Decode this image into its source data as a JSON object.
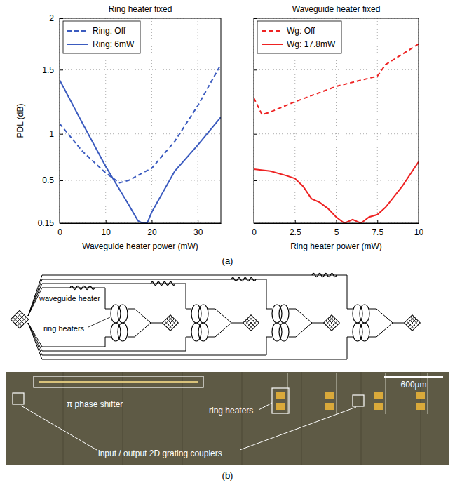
{
  "chart_data": [
    {
      "type": "line",
      "title": "Ring heater fixed",
      "xlabel": "Waveguide heater power (mW)",
      "ylabel": "PDL (dB)",
      "xlim": [
        0,
        35
      ],
      "xticks": [
        0,
        10,
        20,
        30
      ],
      "ylim": [
        0.15,
        2
      ],
      "yticks": [
        0.15,
        0.5,
        1,
        1.5,
        2
      ],
      "grid": true,
      "legend": "upper-left",
      "series": [
        {
          "name": "Ring: Off",
          "color": "#3b5bbf",
          "line_style": "dashed",
          "x": [
            0,
            5,
            10,
            13,
            15,
            18,
            20,
            25,
            30,
            35
          ],
          "values": [
            1.08,
            0.81,
            0.58,
            0.48,
            0.5,
            0.58,
            0.63,
            0.92,
            1.22,
            1.55
          ]
        },
        {
          "name": "Ring: 6mW",
          "color": "#3b5bbf",
          "line_style": "solid",
          "x": [
            0,
            5,
            10,
            15,
            17,
            18,
            19,
            20,
            25,
            30,
            35
          ],
          "values": [
            1.42,
            1.08,
            0.65,
            0.3,
            0.17,
            0.15,
            0.15,
            0.24,
            0.6,
            0.88,
            1.13
          ]
        }
      ]
    },
    {
      "type": "line",
      "title": "Waveguide heater fixed",
      "xlabel": "Ring heater power (mW)",
      "xlim": [
        0,
        10
      ],
      "xticks": [
        0,
        2.5,
        5,
        7.5,
        10
      ],
      "ylim": [
        0.15,
        2
      ],
      "yticks": [
        0.15,
        0.5,
        1,
        1.5,
        2
      ],
      "grid": true,
      "legend": "upper-left",
      "tick_labels": "x",
      "series": [
        {
          "name": "Wg: Off",
          "color": "#ee2222",
          "line_style": "dashed",
          "x": [
            0,
            0.5,
            1,
            2.5,
            5,
            7.5,
            8,
            10
          ],
          "values": [
            1.28,
            1.15,
            1.17,
            1.25,
            1.37,
            1.45,
            1.55,
            1.75
          ]
        },
        {
          "name": "Wg: 17.8mW",
          "color": "#ee2222",
          "line_style": "solid",
          "x": [
            0,
            1,
            2,
            2.5,
            3,
            3.5,
            4,
            4.5,
            5,
            5.5,
            6,
            6.5,
            7,
            7.5,
            8,
            9,
            10
          ],
          "values": [
            0.62,
            0.6,
            0.55,
            0.52,
            0.45,
            0.35,
            0.32,
            0.27,
            0.2,
            0.15,
            0.18,
            0.15,
            0.2,
            0.22,
            0.28,
            0.45,
            0.7
          ]
        }
      ]
    }
  ],
  "panel_labels": [
    "(a)",
    "(b)"
  ],
  "diagram": {
    "labels": [
      "waveguide heater",
      "ring heaters"
    ]
  },
  "photo": {
    "labels": [
      "π phase shifter",
      "ring heaters",
      "input / output 2D grating couplers"
    ],
    "scale_bar": "600μm"
  }
}
